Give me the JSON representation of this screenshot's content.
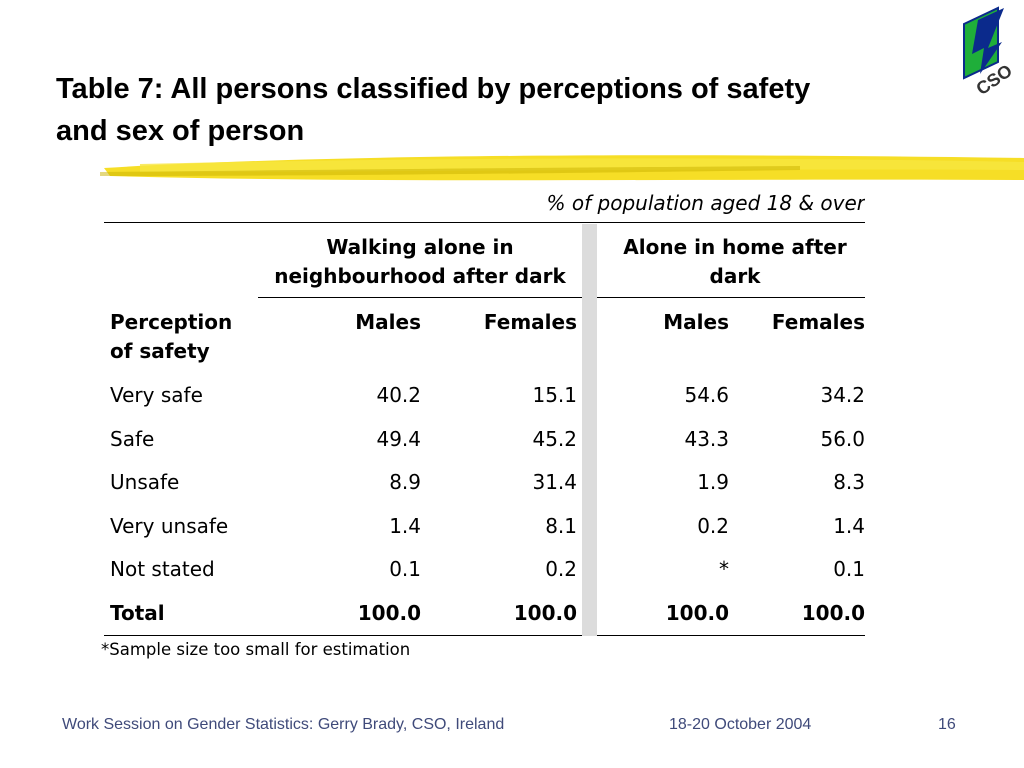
{
  "slide": {
    "title_line1": "Table 7: All persons classified by perceptions of safety",
    "title_line2": "and sex of person",
    "logo_text": "CSO",
    "subheading": "% of population aged 18 & over"
  },
  "table": {
    "group_headers": [
      "Walking alone in neighbourhood after dark",
      "Alone in home after dark"
    ],
    "column_headers": [
      "Perception of safety",
      "Males",
      "Females",
      "Males",
      "Females"
    ],
    "rows": [
      {
        "label": "Very safe",
        "values": [
          "40.2",
          "15.1",
          "54.6",
          "34.2"
        ]
      },
      {
        "label": "Safe",
        "values": [
          "49.4",
          "45.2",
          "43.3",
          "56.0"
        ]
      },
      {
        "label": "Unsafe",
        "values": [
          "8.9",
          "31.4",
          "1.9",
          "8.3"
        ]
      },
      {
        "label": "Very unsafe",
        "values": [
          "1.4",
          "8.1",
          "0.2",
          "1.4"
        ]
      },
      {
        "label": "Not stated",
        "values": [
          "0.1",
          "0.2",
          "*",
          "0.1"
        ]
      },
      {
        "label": "Total",
        "values": [
          "100.0",
          "100.0",
          "100.0",
          "100.0"
        ]
      }
    ],
    "footnote": "*Sample size too small for estimation"
  },
  "footer": {
    "left": "Work Session on Gender Statistics:  Gerry Brady, CSO, Ireland",
    "date": "18-20 October 2004",
    "page": "16"
  },
  "colors": {
    "highlight": "#f4d800",
    "logo_green": "#1fae3a",
    "logo_blue": "#0b2a8c",
    "footer_text": "#3f4a7a",
    "separator": "#dcdcdc"
  }
}
